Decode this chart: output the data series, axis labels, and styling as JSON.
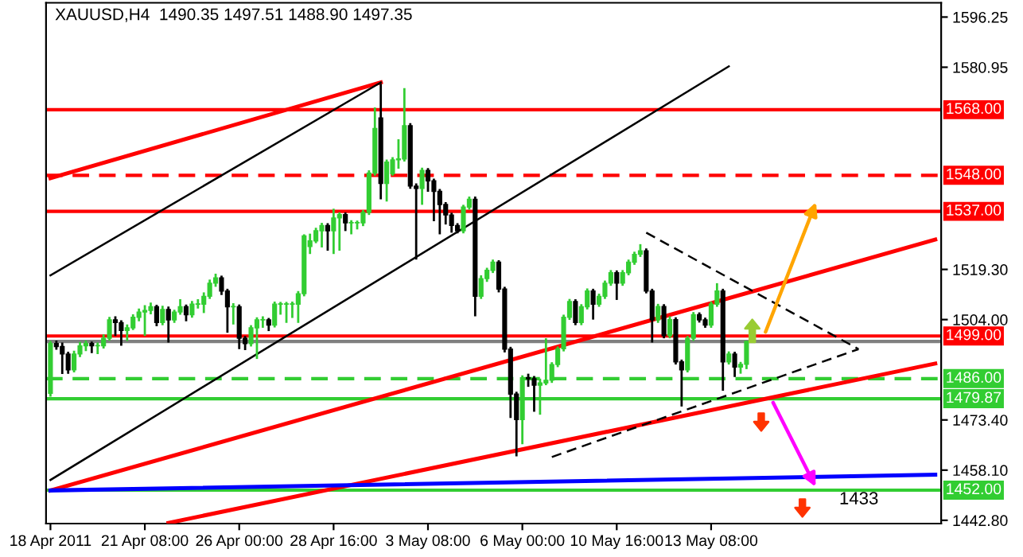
{
  "chart_data": {
    "type": "candlestick",
    "title": "XAUUSD,H4  1490.35 1497.51 1488.90 1497.35",
    "annotations": [
      "1433"
    ],
    "colors": [
      "#32cd32",
      "#000000",
      "#000000",
      "#000000",
      "#32cd32",
      "#32cd32",
      "#32cd32",
      "#000000",
      "#32cd32",
      "#32cd32",
      "#32cd32",
      "#000000",
      "#000000",
      "#32cd32",
      "#32cd32",
      "#32cd32",
      "#32cd32",
      "#32cd32",
      "#000000",
      "#32cd32",
      "#000000",
      "#32cd32",
      "#32cd32",
      "#000000",
      "#32cd32",
      "#32cd32",
      "#32cd32",
      "#32cd32",
      "#32cd32",
      "#000000",
      "#000000",
      "#32cd32",
      "#000000",
      "#000000",
      "#32cd32",
      "#32cd32",
      "#32cd32",
      "#000000",
      "#32cd32",
      "#32cd32",
      "#32cd32",
      "#32cd32",
      "#32cd32",
      "#32cd32",
      "#32cd32",
      "#32cd32",
      "#32cd32",
      "#000000",
      "#32cd32",
      "#32cd32",
      "#000000",
      "#32cd32",
      "#32cd32",
      "#32cd32",
      "#32cd32",
      "#32cd32",
      "#000000",
      "#32cd32",
      "#32cd32",
      "#32cd32",
      "#32cd32",
      "#000000",
      "#000000",
      "#32cd32",
      "#000000",
      "#000000",
      "#000000",
      "#000000",
      "#000000",
      "#000000",
      "#32cd32",
      "#32cd32",
      "#000000",
      "#32cd32",
      "#32cd32",
      "#32cd32",
      "#000000",
      "#000000",
      "#000000",
      "#000000",
      "#32cd32",
      "#000000",
      "#000000",
      "#32cd32",
      "#32cd32",
      "#32cd32",
      "#32cd32",
      "#32cd32",
      "#32cd32",
      "#000000",
      "#32cd32",
      "#32cd32",
      "#000000",
      "#32cd32",
      "#32cd32",
      "#32cd32",
      "#000000",
      "#32cd32",
      "#32cd32",
      "#32cd32",
      "#32cd32",
      "#000000",
      "#000000",
      "#32cd32",
      "#000000",
      "#32cd32",
      "#000000",
      "#000000",
      "#32cd32",
      "#32cd32",
      "#000000",
      "#000000",
      "#32cd32",
      "#32cd32",
      "#000000",
      "#32cd32",
      "#000000",
      "#32cd32",
      "#32cd32",
      null,
      null,
      null,
      null,
      null,
      null,
      null,
      null,
      null,
      null,
      null,
      null,
      null,
      null,
      null,
      null,
      null,
      null,
      null,
      null,
      null,
      null,
      null,
      null,
      null,
      null,
      null,
      null,
      null,
      null,
      null,
      null,
      null
    ],
    "categories": [
      "18 Apr 2011",
      null,
      null,
      null,
      null,
      null,
      null,
      null,
      null,
      null,
      null,
      null,
      null,
      null,
      null,
      null,
      "21 Apr 08:00",
      null,
      null,
      null,
      null,
      null,
      null,
      null,
      null,
      null,
      null,
      null,
      null,
      null,
      null,
      null,
      "26 Apr 00:00",
      null,
      null,
      null,
      null,
      null,
      null,
      null,
      null,
      null,
      null,
      null,
      null,
      null,
      null,
      null,
      "28 Apr 16:00",
      null,
      null,
      null,
      null,
      null,
      null,
      null,
      null,
      null,
      null,
      null,
      null,
      null,
      null,
      null,
      "3 May 08:00",
      null,
      null,
      null,
      null,
      null,
      null,
      null,
      null,
      null,
      null,
      null,
      null,
      null,
      null,
      null,
      "6 May 00:00",
      null,
      null,
      null,
      null,
      null,
      null,
      null,
      null,
      null,
      null,
      null,
      null,
      null,
      null,
      null,
      "10 May 16:00",
      null,
      null,
      null,
      null,
      null,
      null,
      null,
      null,
      null,
      null,
      null,
      null,
      null,
      null,
      null,
      "13 May 08:00",
      null,
      null,
      null,
      null,
      null,
      null,
      null,
      null,
      null,
      null,
      null,
      null,
      null,
      null,
      null,
      null,
      null,
      null,
      null,
      null,
      null,
      null,
      null,
      null,
      null,
      null,
      null,
      null,
      null,
      null,
      null,
      null,
      null,
      null,
      null,
      null,
      null,
      null,
      null
    ],
    "ohlc": [
      [
        1481.5,
        1497.5,
        1480.5,
        1496.7
      ],
      [
        1496.7,
        1497.6,
        1494.8,
        1495.8
      ],
      [
        1495.8,
        1497.0,
        1487.4,
        1493.5
      ],
      [
        1493.5,
        1494.2,
        1487.5,
        1488.7
      ],
      [
        1488.7,
        1494.5,
        1487.9,
        1493.5
      ],
      [
        1493.5,
        1497.2,
        1492.6,
        1496.0
      ],
      [
        1496.0,
        1497.6,
        1494.4,
        1496.7
      ],
      [
        1496.7,
        1497.3,
        1493.8,
        1496.0
      ],
      [
        1496.0,
        1497.0,
        1493.5,
        1496.0
      ],
      [
        1496.0,
        1499.5,
        1495.2,
        1498.3
      ],
      [
        1498.3,
        1504.8,
        1497.6,
        1503.9
      ],
      [
        1503.9,
        1505.0,
        1499.0,
        1503.1
      ],
      [
        1503.1,
        1503.8,
        1496.0,
        1500.7
      ],
      [
        1500.7,
        1502.5,
        1497.5,
        1501.5
      ],
      [
        1501.5,
        1505.6,
        1500.8,
        1504.7
      ],
      [
        1504.7,
        1507.4,
        1503.5,
        1506.3
      ],
      [
        1506.3,
        1508.4,
        1499.0,
        1506.8
      ],
      [
        1506.8,
        1509.2,
        1505.6,
        1507.9
      ],
      [
        1507.9,
        1508.5,
        1502.0,
        1503.1
      ],
      [
        1503.1,
        1508.2,
        1502.3,
        1507.1
      ],
      [
        1507.1,
        1508.0,
        1497.0,
        1503.9
      ],
      [
        1503.9,
        1507.0,
        1503.0,
        1506.3
      ],
      [
        1506.3,
        1510.2,
        1505.5,
        1507.9
      ],
      [
        1507.9,
        1508.6,
        1503.5,
        1505.5
      ],
      [
        1505.5,
        1509.7,
        1504.6,
        1508.7
      ],
      [
        1508.7,
        1510.2,
        1507.4,
        1508.7
      ],
      [
        1508.7,
        1512.3,
        1506.0,
        1511.1
      ],
      [
        1511.1,
        1516.2,
        1510.3,
        1515.1
      ],
      [
        1515.1,
        1518.0,
        1514.0,
        1516.7
      ],
      [
        1516.7,
        1517.4,
        1511.5,
        1512.7
      ],
      [
        1512.7,
        1513.4,
        1500.0,
        1507.9
      ],
      [
        1507.9,
        1509.0,
        1502.5,
        1507.9
      ],
      [
        1507.9,
        1508.6,
        1495.0,
        1498.3
      ],
      [
        1498.3,
        1499.0,
        1494.7,
        1496.7
      ],
      [
        1496.7,
        1502.3,
        1495.8,
        1501.5
      ],
      [
        1501.5,
        1504.7,
        1492.0,
        1503.9
      ],
      [
        1503.9,
        1505.0,
        1501.5,
        1503.9
      ],
      [
        1503.9,
        1504.5,
        1500.5,
        1502.3
      ],
      [
        1502.3,
        1509.5,
        1501.6,
        1508.7
      ],
      [
        1508.7,
        1509.4,
        1505.5,
        1508.7
      ],
      [
        1508.7,
        1509.4,
        1503.0,
        1508.7
      ],
      [
        1508.7,
        1509.5,
        1504.5,
        1508.7
      ],
      [
        1508.7,
        1512.7,
        1503.0,
        1511.9
      ],
      [
        1511.9,
        1530.0,
        1511.1,
        1529.5
      ],
      [
        1526.3,
        1530.2,
        1524.0,
        1528.0
      ],
      [
        1528.0,
        1532.0,
        1527.3,
        1531.1
      ],
      [
        1531.1,
        1533.5,
        1526.0,
        1532.7
      ],
      [
        1532.7,
        1533.4,
        1525.0,
        1531.1
      ],
      [
        1531.1,
        1537.8,
        1524.0,
        1535.0
      ],
      [
        1535.0,
        1536.7,
        1525.0,
        1536.0
      ],
      [
        1536.0,
        1536.7,
        1531.0,
        1533.5
      ],
      [
        1533.5,
        1534.3,
        1530.0,
        1533.5
      ],
      [
        1533.5,
        1534.2,
        1531.5,
        1533.5
      ],
      [
        1533.5,
        1537.4,
        1532.5,
        1536.7
      ],
      [
        1536.7,
        1549.5,
        1535.9,
        1548.7
      ],
      [
        1548.7,
        1568.7,
        1547.9,
        1562.3
      ],
      [
        1565.5,
        1575.9,
        1540.7,
        1545.5
      ],
      [
        1545.5,
        1552.8,
        1540.0,
        1552.0
      ],
      [
        1548.5,
        1553.5,
        1547.9,
        1552.7
      ],
      [
        1552.7,
        1559.0,
        1550.0,
        1553.0
      ],
      [
        1553.0,
        1574.6,
        1552.2,
        1563.1
      ],
      [
        1563.1,
        1563.9,
        1543.9,
        1544.7
      ],
      [
        1544.7,
        1545.5,
        1522.3,
        1544.0
      ],
      [
        1544.0,
        1550.3,
        1539.0,
        1549.5
      ],
      [
        1549.5,
        1550.2,
        1543.0,
        1546.3
      ],
      [
        1546.3,
        1547.0,
        1534.0,
        1543.1
      ],
      [
        1543.1,
        1543.8,
        1530.0,
        1539.1
      ],
      [
        1539.1,
        1539.8,
        1533.0,
        1535.9
      ],
      [
        1535.9,
        1536.6,
        1530.5,
        1532.7
      ],
      [
        1532.7,
        1533.4,
        1530.3,
        1531.1
      ],
      [
        1531.1,
        1539.0,
        1530.3,
        1538.3
      ],
      [
        1538.3,
        1541.5,
        1537.5,
        1540.7
      ],
      [
        1540.7,
        1541.5,
        1505.0,
        1511.1
      ],
      [
        1511.1,
        1517.5,
        1510.3,
        1516.5
      ],
      [
        1516.5,
        1519.8,
        1515.5,
        1519.0
      ],
      [
        1519.0,
        1522.3,
        1518.2,
        1521.5
      ],
      [
        1521.5,
        1522.1,
        1512.3,
        1513.3
      ],
      [
        1513.3,
        1514.0,
        1494.0,
        1495.0
      ],
      [
        1495.0,
        1495.7,
        1474.0,
        1481.3
      ],
      [
        1481.3,
        1482.0,
        1462.3,
        1473.5
      ],
      [
        1473.5,
        1487.0,
        1466.0,
        1486.3
      ],
      [
        1486.3,
        1487.5,
        1483.5,
        1486.0
      ],
      [
        1486.0,
        1486.8,
        1475.9,
        1484.0
      ],
      [
        1484.0,
        1486.0,
        1475.0,
        1484.7
      ],
      [
        1484.7,
        1498.3,
        1484.0,
        1485.5
      ],
      [
        1485.5,
        1491.0,
        1484.7,
        1490.3
      ],
      [
        1490.3,
        1495.8,
        1489.5,
        1495.1
      ],
      [
        1495.1,
        1505.5,
        1494.3,
        1504.7
      ],
      [
        1504.7,
        1510.3,
        1503.9,
        1509.5
      ],
      [
        1509.5,
        1510.2,
        1502.3,
        1503.1
      ],
      [
        1503.1,
        1508.7,
        1502.3,
        1507.9
      ],
      [
        1507.9,
        1513.5,
        1507.1,
        1512.7
      ],
      [
        1512.7,
        1513.4,
        1504.0,
        1508.7
      ],
      [
        1508.7,
        1511.9,
        1507.9,
        1511.1
      ],
      [
        1511.1,
        1515.9,
        1510.3,
        1515.1
      ],
      [
        1515.1,
        1519.1,
        1514.3,
        1518.3
      ],
      [
        1518.3,
        1519.0,
        1510.0,
        1515.1
      ],
      [
        1515.1,
        1519.1,
        1514.3,
        1518.3
      ],
      [
        1518.3,
        1522.3,
        1517.5,
        1521.5
      ],
      [
        1521.5,
        1524.7,
        1520.7,
        1523.9
      ],
      [
        1523.9,
        1527.0,
        1523.1,
        1525.0
      ],
      [
        1525.0,
        1525.7,
        1512.0,
        1512.7
      ],
      [
        1512.7,
        1513.4,
        1497.0,
        1503.9
      ],
      [
        1503.9,
        1508.8,
        1503.0,
        1508.0
      ],
      [
        1508.0,
        1508.7,
        1498.3,
        1499.1
      ],
      [
        1499.1,
        1505.0,
        1498.3,
        1504.0
      ],
      [
        1504.0,
        1504.7,
        1490.3,
        1491.1
      ],
      [
        1491.1,
        1491.8,
        1477.5,
        1488.7
      ],
      [
        1488.7,
        1499.0,
        1487.9,
        1498.3
      ],
      [
        1498.3,
        1506.3,
        1497.5,
        1505.5
      ],
      [
        1505.5,
        1506.2,
        1503.1,
        1503.9
      ],
      [
        1503.9,
        1504.6,
        1501.5,
        1502.3
      ],
      [
        1502.3,
        1509.5,
        1501.5,
        1508.7
      ],
      [
        1508.7,
        1515.1,
        1507.9,
        1512.7
      ],
      [
        1512.7,
        1513.4,
        1482.3,
        1491.1
      ],
      [
        1491.1,
        1494.3,
        1490.3,
        1493.5
      ],
      [
        1493.5,
        1494.2,
        1486.5,
        1489.5
      ],
      [
        1489.5,
        1491.1,
        1487.5,
        1490.35
      ],
      [
        1490.35,
        1497.51,
        1488.9,
        1497.35
      ],
      null,
      null,
      null,
      null,
      null,
      null,
      null,
      null,
      null,
      null,
      null,
      null,
      null,
      null,
      null,
      null,
      null,
      null,
      null,
      null,
      null,
      null,
      null,
      null,
      null,
      null,
      null,
      null,
      null,
      null,
      null,
      null,
      null
    ],
    "series": [
      {
        "type": "line",
        "color": "#ff0000",
        "values": [
          1547.1,
          null,
          null,
          null,
          null,
          null,
          null,
          null,
          null,
          null,
          null,
          null,
          null,
          null,
          null,
          null,
          null,
          null,
          null,
          null,
          null,
          null,
          null,
          null,
          null,
          null,
          null,
          null,
          null,
          null,
          null,
          null,
          null,
          null,
          null,
          null,
          null,
          null,
          null,
          null,
          null,
          null,
          null,
          null,
          null,
          null,
          null,
          null,
          null,
          null,
          null,
          null,
          null,
          null,
          null,
          null,
          1576.3,
          null,
          null,
          null,
          null,
          null,
          null,
          null,
          null,
          null,
          null,
          null,
          null,
          null,
          null,
          null,
          null,
          null,
          null,
          null,
          null,
          null,
          null,
          null,
          null,
          null,
          null,
          null,
          null,
          null,
          null,
          null,
          null,
          null,
          null,
          null,
          null,
          null,
          null,
          null,
          null,
          null,
          null,
          null,
          null,
          null,
          null,
          null,
          null,
          null,
          null,
          null,
          null,
          null,
          null,
          null,
          null,
          null,
          null,
          null,
          null,
          null,
          null,
          null,
          null,
          null,
          null,
          null,
          null,
          null,
          null,
          null,
          null,
          null,
          null,
          null,
          null,
          null,
          null,
          null,
          null,
          null,
          null,
          null,
          null,
          null,
          null,
          null,
          null,
          null,
          null,
          null,
          null,
          null,
          null,
          null
        ]
      },
      {
        "type": "line",
        "color": "#000000",
        "values": [
          1517.5,
          null,
          null,
          null,
          null,
          null,
          null,
          null,
          null,
          null,
          null,
          null,
          null,
          null,
          null,
          null,
          null,
          null,
          null,
          null,
          null,
          null,
          null,
          null,
          null,
          null,
          null,
          null,
          null,
          null,
          null,
          null,
          null,
          null,
          null,
          null,
          null,
          null,
          null,
          null,
          null,
          null,
          null,
          null,
          null,
          null,
          null,
          null,
          null,
          null,
          null,
          null,
          null,
          null,
          null,
          null,
          1576.3,
          null,
          null,
          null,
          null,
          null,
          null,
          null,
          null,
          null,
          null,
          null,
          null,
          null,
          null,
          null,
          null,
          null,
          null,
          null,
          null,
          null,
          null,
          null,
          null,
          null,
          null,
          null,
          null,
          null,
          null,
          null,
          null,
          null,
          null,
          null,
          null,
          null,
          null,
          null,
          null,
          null,
          null,
          null,
          null,
          null,
          null,
          null,
          null,
          null,
          null,
          null,
          null,
          null,
          null,
          null,
          null,
          null,
          null,
          null,
          null,
          null,
          null,
          null,
          null,
          null,
          null,
          null,
          null,
          null,
          null,
          null,
          null,
          null,
          null,
          null,
          null,
          null,
          null,
          null,
          null,
          null,
          null,
          null,
          null,
          null,
          null,
          null,
          null,
          null,
          null,
          null,
          null,
          null,
          null,
          null
        ]
      },
      {
        "type": "line",
        "color": "#000000",
        "values": [
          1455.1,
          null,
          null,
          null,
          null,
          null,
          null,
          null,
          null,
          null,
          null,
          null,
          null,
          null,
          null,
          null,
          null,
          null,
          null,
          null,
          null,
          null,
          null,
          null,
          null,
          null,
          null,
          null,
          null,
          null,
          null,
          null,
          null,
          null,
          null,
          null,
          null,
          null,
          null,
          null,
          null,
          null,
          null,
          null,
          null,
          null,
          null,
          null,
          null,
          null,
          null,
          null,
          null,
          null,
          null,
          null,
          null,
          null,
          null,
          null,
          null,
          null,
          null,
          null,
          null,
          null,
          null,
          null,
          null,
          null,
          null,
          null,
          null,
          null,
          null,
          null,
          null,
          null,
          null,
          null,
          null,
          null,
          null,
          null,
          null,
          null,
          null,
          null,
          null,
          null,
          null,
          null,
          null,
          null,
          null,
          null,
          null,
          null,
          null,
          null,
          null,
          null,
          null,
          null,
          null,
          null,
          null,
          null,
          null,
          null,
          null,
          null,
          null,
          null,
          null,
          1581.2,
          null,
          null,
          null,
          null,
          null,
          null,
          null,
          null,
          null,
          null,
          null,
          null,
          null,
          null,
          null,
          null,
          null,
          null,
          null,
          null,
          null,
          null,
          null,
          null,
          null,
          null,
          null,
          null,
          null,
          null,
          null,
          null,
          null,
          null,
          null,
          null
        ]
      },
      {
        "type": "line",
        "color": "#ff0000",
        "values": [
          1451.9,
          null,
          null,
          null,
          null,
          null,
          null,
          null,
          null,
          null,
          null,
          null,
          null,
          null,
          null,
          null,
          null,
          null,
          null,
          null,
          null,
          null,
          null,
          null,
          null,
          null,
          null,
          null,
          null,
          null,
          null,
          null,
          null,
          null,
          null,
          null,
          null,
          null,
          null,
          null,
          null,
          null,
          null,
          null,
          null,
          null,
          null,
          null,
          null,
          null,
          null,
          null,
          null,
          null,
          null,
          null,
          null,
          null,
          null,
          null,
          null,
          null,
          null,
          null,
          null,
          null,
          null,
          null,
          null,
          null,
          null,
          null,
          null,
          null,
          null,
          null,
          null,
          null,
          null,
          null,
          null,
          null,
          null,
          null,
          null,
          null,
          null,
          null,
          null,
          null,
          null,
          null,
          null,
          null,
          null,
          null,
          null,
          null,
          null,
          null,
          null,
          null,
          null,
          null,
          null,
          null,
          null,
          null,
          null,
          null,
          null,
          null,
          null,
          null,
          null,
          null,
          null,
          null,
          null,
          null,
          null,
          null,
          null,
          null,
          null,
          null,
          null,
          null,
          null,
          null,
          null,
          null,
          null,
          null,
          null,
          null,
          null,
          null,
          null,
          null,
          null,
          null,
          null,
          null,
          null,
          null,
          null,
          null,
          null,
          null,
          1528.4,
          null
        ]
      },
      {
        "type": "line",
        "color": "#ff0000",
        "values": [
          null,
          null,
          null,
          null,
          null,
          null,
          null,
          null,
          null,
          null,
          null,
          null,
          null,
          null,
          null,
          null,
          null,
          null,
          null,
          null,
          1442.0,
          null,
          null,
          null,
          null,
          null,
          null,
          null,
          null,
          null,
          null,
          null,
          null,
          null,
          null,
          null,
          null,
          null,
          null,
          null,
          null,
          null,
          null,
          null,
          null,
          null,
          null,
          null,
          null,
          null,
          null,
          null,
          null,
          null,
          null,
          null,
          null,
          null,
          null,
          null,
          null,
          null,
          null,
          null,
          null,
          null,
          null,
          null,
          null,
          null,
          null,
          null,
          null,
          null,
          null,
          null,
          null,
          null,
          null,
          null,
          null,
          null,
          null,
          null,
          null,
          null,
          null,
          null,
          null,
          null,
          null,
          null,
          null,
          null,
          null,
          null,
          null,
          null,
          null,
          null,
          null,
          null,
          null,
          null,
          null,
          null,
          null,
          null,
          null,
          null,
          null,
          null,
          null,
          null,
          null,
          null,
          null,
          null,
          null,
          null,
          null,
          null,
          null,
          null,
          null,
          null,
          null,
          null,
          null,
          null,
          null,
          null,
          null,
          null,
          null,
          null,
          null,
          null,
          null,
          null,
          null,
          null,
          null,
          null,
          null,
          null,
          null,
          null,
          null,
          null,
          1490.6,
          null
        ]
      },
      {
        "type": "line",
        "color": "#0000ff",
        "values": [
          1451.9,
          null,
          null,
          null,
          null,
          null,
          null,
          null,
          null,
          null,
          null,
          null,
          null,
          null,
          null,
          null,
          null,
          null,
          null,
          null,
          null,
          null,
          null,
          null,
          null,
          null,
          null,
          null,
          null,
          null,
          null,
          null,
          null,
          null,
          null,
          null,
          null,
          null,
          null,
          null,
          null,
          null,
          null,
          null,
          null,
          null,
          null,
          null,
          null,
          null,
          null,
          null,
          null,
          null,
          null,
          null,
          null,
          null,
          null,
          null,
          null,
          null,
          null,
          null,
          null,
          null,
          null,
          null,
          null,
          null,
          null,
          null,
          null,
          null,
          null,
          null,
          null,
          null,
          null,
          null,
          null,
          null,
          null,
          null,
          null,
          null,
          null,
          null,
          null,
          null,
          null,
          null,
          null,
          null,
          null,
          null,
          null,
          null,
          null,
          null,
          null,
          null,
          null,
          null,
          null,
          null,
          null,
          null,
          null,
          null,
          null,
          null,
          null,
          null,
          null,
          null,
          null,
          null,
          null,
          null,
          null,
          null,
          null,
          null,
          null,
          null,
          null,
          null,
          null,
          null,
          null,
          null,
          null,
          null,
          null,
          null,
          null,
          null,
          null,
          null,
          null,
          null,
          null,
          null,
          null,
          null,
          null,
          null,
          null,
          null,
          1456.7,
          null
        ]
      },
      {
        "type": "line",
        "color": "#000000",
        "line_style": "dashed",
        "values": [
          null,
          null,
          null,
          null,
          null,
          null,
          null,
          null,
          null,
          null,
          null,
          null,
          null,
          null,
          null,
          null,
          null,
          null,
          null,
          null,
          null,
          null,
          null,
          null,
          null,
          null,
          null,
          null,
          null,
          null,
          null,
          null,
          null,
          null,
          null,
          null,
          null,
          null,
          null,
          null,
          null,
          null,
          null,
          null,
          null,
          null,
          null,
          null,
          null,
          null,
          null,
          null,
          null,
          null,
          null,
          null,
          null,
          null,
          null,
          null,
          null,
          null,
          null,
          null,
          null,
          null,
          null,
          null,
          null,
          null,
          null,
          null,
          null,
          null,
          null,
          null,
          null,
          null,
          null,
          null,
          null,
          null,
          null,
          null,
          null,
          null,
          null,
          null,
          null,
          null,
          null,
          null,
          null,
          null,
          null,
          null,
          null,
          null,
          null,
          null,
          null,
          1530.5,
          null,
          null,
          null,
          null,
          null,
          null,
          null,
          null,
          null,
          null,
          null,
          null,
          null,
          null,
          null,
          null,
          null,
          null,
          null,
          null,
          null,
          null,
          null,
          null,
          null,
          null,
          null,
          null,
          null,
          null,
          null,
          null,
          null,
          null,
          null,
          1495.0,
          null,
          null,
          null,
          null,
          null,
          null,
          null,
          null,
          null,
          null,
          null,
          null,
          null,
          null
        ]
      },
      {
        "type": "line",
        "color": "#000000",
        "line_style": "dashed",
        "values": [
          null,
          null,
          null,
          null,
          null,
          null,
          null,
          null,
          null,
          null,
          null,
          null,
          null,
          null,
          null,
          null,
          null,
          null,
          null,
          null,
          null,
          null,
          null,
          null,
          null,
          null,
          null,
          null,
          null,
          null,
          null,
          null,
          null,
          null,
          null,
          null,
          null,
          null,
          null,
          null,
          null,
          null,
          null,
          null,
          null,
          null,
          null,
          null,
          null,
          null,
          null,
          null,
          null,
          null,
          null,
          null,
          null,
          null,
          null,
          null,
          null,
          null,
          null,
          null,
          null,
          null,
          null,
          null,
          null,
          null,
          null,
          null,
          null,
          null,
          null,
          null,
          null,
          null,
          null,
          null,
          null,
          null,
          null,
          null,
          null,
          1462.1,
          null,
          null,
          null,
          null,
          null,
          null,
          null,
          null,
          null,
          null,
          null,
          null,
          null,
          null,
          null,
          null,
          null,
          null,
          null,
          null,
          null,
          null,
          null,
          null,
          null,
          null,
          null,
          null,
          null,
          null,
          null,
          null,
          null,
          null,
          null,
          null,
          null,
          null,
          null,
          null,
          null,
          null,
          null,
          null,
          null,
          null,
          null,
          null,
          null,
          null,
          null,
          1495.0,
          null,
          null,
          null,
          null,
          null,
          null,
          null,
          null,
          null,
          null,
          null,
          null,
          null,
          null
        ]
      }
    ],
    "ref_lines": [
      {
        "axis": "y",
        "value": 1568,
        "label": "1568.00",
        "color": "#ff0000"
      },
      {
        "axis": "y",
        "value": 1548,
        "label": "1548.00",
        "color": "#ff0000",
        "line_style": "dashed"
      },
      {
        "axis": "y",
        "value": 1537,
        "label": "1537.00",
        "color": "#ff0000"
      },
      {
        "axis": "y",
        "value": 1499,
        "label": "1499.00",
        "color": "#ff0000"
      },
      {
        "axis": "y",
        "value": 1497.35,
        "color": "#808080"
      },
      {
        "axis": "y",
        "value": 1486,
        "label": "1486.00",
        "color": "#32cd32",
        "line_style": "dashed"
      },
      {
        "axis": "y",
        "value": 1479.87,
        "label": "1479.87",
        "color": "#32cd32"
      },
      {
        "axis": "y",
        "value": 1452,
        "label": "1452.00",
        "color": "#32cd32"
      }
    ],
    "ylim": [
      1441.8,
      1600.6
    ],
    "yticks": [
      1596.25,
      1580.95,
      {
        "value": 1519.3,
        "label": "1519.30"
      },
      {
        "value": 1504,
        "label": "1504.00"
      },
      {
        "value": 1473.4,
        "label": "1473.40"
      },
      {
        "value": 1458.1,
        "label": "1458.10"
      },
      {
        "value": 1442.8,
        "label": "1442.80"
      }
    ],
    "grid": false,
    "legend": false
  }
}
